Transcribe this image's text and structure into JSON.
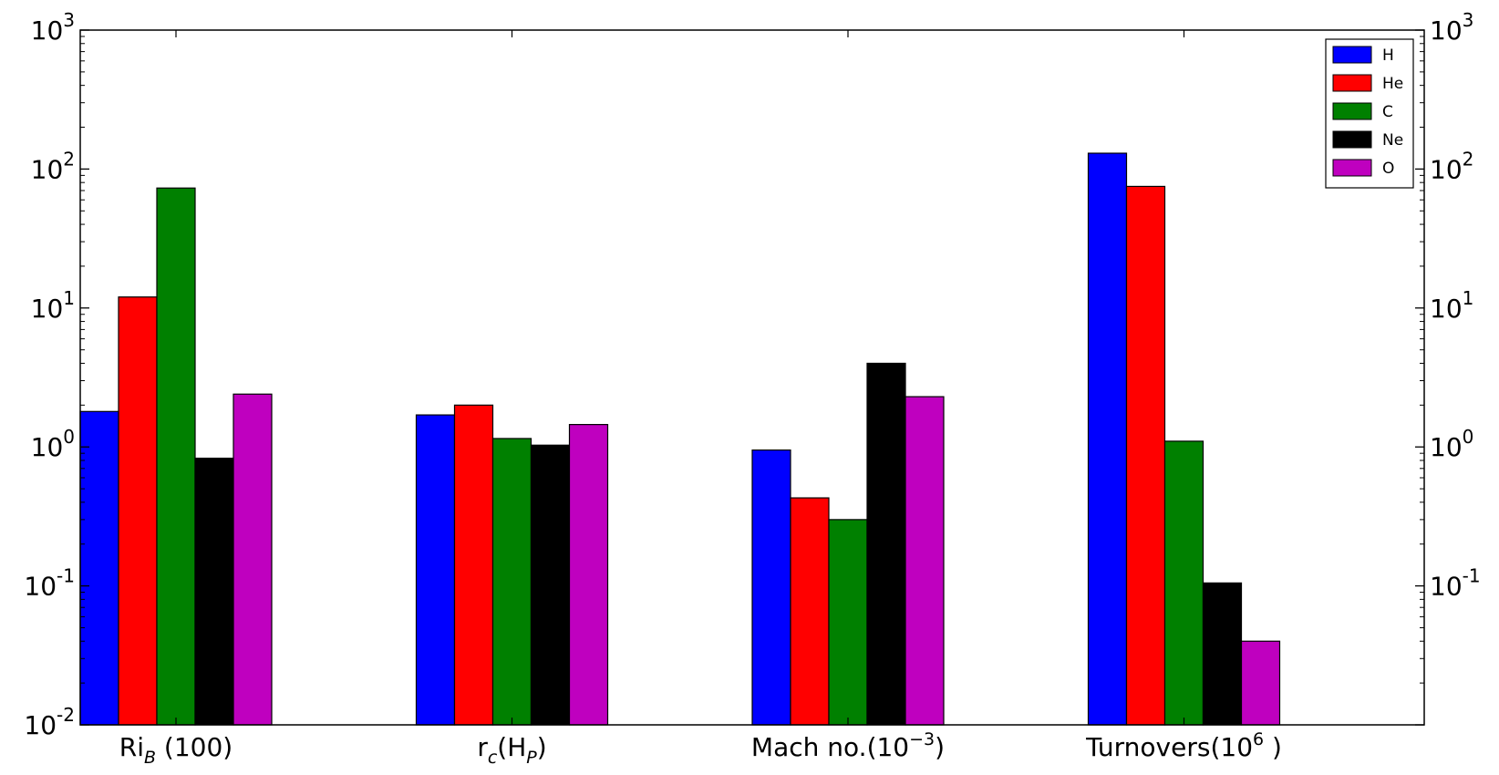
{
  "chart_data": {
    "type": "bar",
    "y_scale": "log",
    "ylim": [
      0.01,
      1000
    ],
    "grid": false,
    "legend_placement": "top-right",
    "categories": [
      {
        "base": "Ri",
        "sub": "B",
        "tail": " (100)"
      },
      {
        "base": "r",
        "sub": "c",
        "tail": "(H",
        "sub2": "P",
        "tail2": ")"
      },
      {
        "base": "Mach no.(10",
        "sup": "−3",
        "tail": ")"
      },
      {
        "base": "Turnovers(10",
        "sup": "6",
        "tail": " )"
      }
    ],
    "left_ticks": [
      {
        "value": 0.01,
        "base": "10",
        "exp": "-2"
      },
      {
        "value": 0.1,
        "base": "10",
        "exp": "-1"
      },
      {
        "value": 1,
        "base": "10",
        "exp": "0"
      },
      {
        "value": 10,
        "base": "10",
        "exp": "1"
      },
      {
        "value": 100,
        "base": "10",
        "exp": "2"
      },
      {
        "value": 1000,
        "base": "10",
        "exp": "3"
      }
    ],
    "right_ticks": [
      {
        "value": 0.1,
        "base": "10",
        "exp": "-1"
      },
      {
        "value": 1,
        "base": "10",
        "exp": "0"
      },
      {
        "value": 10,
        "base": "10",
        "exp": "1"
      },
      {
        "value": 100,
        "base": "10",
        "exp": "2"
      },
      {
        "value": 1000,
        "base": "10",
        "exp": "3"
      }
    ],
    "series": [
      {
        "name": "H",
        "color": "#0000ff",
        "values": [
          1.8,
          1.7,
          0.95,
          130
        ]
      },
      {
        "name": "He",
        "color": "#ff0000",
        "values": [
          12,
          2.0,
          0.43,
          75
        ]
      },
      {
        "name": "C",
        "color": "#008000",
        "values": [
          73,
          1.15,
          0.3,
          1.1
        ]
      },
      {
        "name": "Ne",
        "color": "#000000",
        "values": [
          0.83,
          1.03,
          4.0,
          0.105
        ]
      },
      {
        "name": "O",
        "color": "#bf00bf",
        "values": [
          2.4,
          1.45,
          2.3,
          0.04
        ]
      }
    ]
  }
}
